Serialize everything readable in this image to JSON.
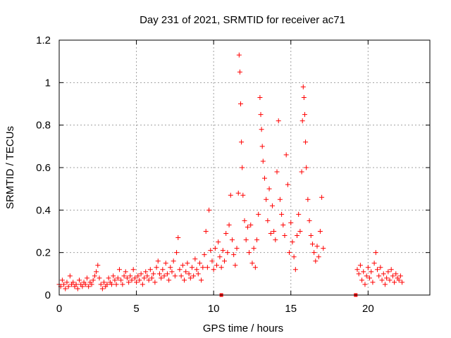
{
  "chart_data": {
    "type": "scatter",
    "title": "Day 231 of 2021, SRMTID for receiver ac71",
    "xlabel": "GPS time / hours",
    "ylabel": "SRMTID / TECUs",
    "xlim": [
      0,
      24
    ],
    "ylim": [
      0,
      1.2
    ],
    "xticks": [
      0,
      5,
      10,
      15,
      20
    ],
    "xtick_labels": [
      "0",
      "5",
      "10",
      "15",
      "20"
    ],
    "yticks": [
      0,
      0.2,
      0.4,
      0.6,
      0.8,
      1.0,
      1.2
    ],
    "ytick_labels": [
      "0",
      "0.2",
      "0.4",
      "0.6",
      "0.8",
      "1",
      "1.2"
    ],
    "grid": true,
    "marker": "plus",
    "color": "#ff0000",
    "series": [
      {
        "name": "SRMTID",
        "points": [
          [
            0.0,
            0.05
          ],
          [
            0.1,
            0.04
          ],
          [
            0.2,
            0.07
          ],
          [
            0.3,
            0.05
          ],
          [
            0.4,
            0.03
          ],
          [
            0.5,
            0.06
          ],
          [
            0.6,
            0.04
          ],
          [
            0.7,
            0.09
          ],
          [
            0.8,
            0.05
          ],
          [
            0.9,
            0.06
          ],
          [
            1.0,
            0.04
          ],
          [
            1.1,
            0.05
          ],
          [
            1.2,
            0.03
          ],
          [
            1.3,
            0.07
          ],
          [
            1.4,
            0.05
          ],
          [
            1.5,
            0.04
          ],
          [
            1.6,
            0.06
          ],
          [
            1.7,
            0.05
          ],
          [
            1.8,
            0.08
          ],
          [
            1.9,
            0.04
          ],
          [
            2.0,
            0.06
          ],
          [
            2.1,
            0.05
          ],
          [
            2.2,
            0.07
          ],
          [
            2.3,
            0.09
          ],
          [
            2.4,
            0.11
          ],
          [
            2.5,
            0.14
          ],
          [
            2.6,
            0.08
          ],
          [
            2.7,
            0.05
          ],
          [
            2.8,
            0.03
          ],
          [
            2.9,
            0.06
          ],
          [
            3.0,
            0.04
          ],
          [
            3.1,
            0.05
          ],
          [
            3.2,
            0.08
          ],
          [
            3.3,
            0.06
          ],
          [
            3.4,
            0.05
          ],
          [
            3.5,
            0.09
          ],
          [
            3.6,
            0.07
          ],
          [
            3.7,
            0.05
          ],
          [
            3.8,
            0.08
          ],
          [
            3.9,
            0.12
          ],
          [
            4.0,
            0.07
          ],
          [
            4.1,
            0.05
          ],
          [
            4.2,
            0.09
          ],
          [
            4.3,
            0.11
          ],
          [
            4.4,
            0.08
          ],
          [
            4.5,
            0.06
          ],
          [
            4.6,
            0.09
          ],
          [
            4.7,
            0.07
          ],
          [
            4.8,
            0.12
          ],
          [
            4.9,
            0.08
          ],
          [
            5.0,
            0.06
          ],
          [
            5.1,
            0.09
          ],
          [
            5.2,
            0.07
          ],
          [
            5.3,
            0.1
          ],
          [
            5.4,
            0.05
          ],
          [
            5.5,
            0.08
          ],
          [
            5.6,
            0.11
          ],
          [
            5.7,
            0.09
          ],
          [
            5.8,
            0.07
          ],
          [
            5.9,
            0.12
          ],
          [
            6.0,
            0.08
          ],
          [
            6.1,
            0.1
          ],
          [
            6.2,
            0.06
          ],
          [
            6.3,
            0.13
          ],
          [
            6.4,
            0.16
          ],
          [
            6.5,
            0.1
          ],
          [
            6.6,
            0.08
          ],
          [
            6.7,
            0.12
          ],
          [
            6.8,
            0.09
          ],
          [
            6.9,
            0.15
          ],
          [
            7.0,
            0.1
          ],
          [
            7.1,
            0.07
          ],
          [
            7.2,
            0.13
          ],
          [
            7.3,
            0.11
          ],
          [
            7.4,
            0.16
          ],
          [
            7.5,
            0.09
          ],
          [
            7.6,
            0.2
          ],
          [
            7.7,
            0.27
          ],
          [
            7.8,
            0.12
          ],
          [
            7.9,
            0.09
          ],
          [
            8.0,
            0.14
          ],
          [
            8.1,
            0.07
          ],
          [
            8.2,
            0.11
          ],
          [
            8.3,
            0.15
          ],
          [
            8.4,
            0.1
          ],
          [
            8.5,
            0.08
          ],
          [
            8.6,
            0.13
          ],
          [
            8.7,
            0.09
          ],
          [
            8.8,
            0.17
          ],
          [
            8.9,
            0.12
          ],
          [
            9.0,
            0.1
          ],
          [
            9.1,
            0.15
          ],
          [
            9.2,
            0.07
          ],
          [
            9.3,
            0.13
          ],
          [
            9.4,
            0.19
          ],
          [
            9.5,
            0.3
          ],
          [
            9.6,
            0.13
          ],
          [
            9.7,
            0.4
          ],
          [
            9.8,
            0.21
          ],
          [
            9.9,
            0.16
          ],
          [
            10.0,
            0.12
          ],
          [
            10.1,
            0.22
          ],
          [
            10.2,
            0.14
          ],
          [
            10.3,
            0.25
          ],
          [
            10.4,
            0.18
          ],
          [
            10.5,
            0.13
          ],
          [
            10.6,
            0.21
          ],
          [
            10.7,
            0.16
          ],
          [
            10.8,
            0.29
          ],
          [
            10.9,
            0.2
          ],
          [
            11.0,
            0.33
          ],
          [
            11.1,
            0.47
          ],
          [
            11.2,
            0.26
          ],
          [
            11.3,
            0.19
          ],
          [
            11.4,
            0.14
          ],
          [
            11.5,
            0.22
          ],
          [
            11.6,
            0.48
          ],
          [
            11.65,
            1.13
          ],
          [
            11.7,
            1.05
          ],
          [
            11.75,
            0.9
          ],
          [
            11.8,
            0.72
          ],
          [
            11.85,
            0.6
          ],
          [
            11.9,
            0.47
          ],
          [
            12.0,
            0.35
          ],
          [
            12.1,
            0.26
          ],
          [
            12.2,
            0.32
          ],
          [
            12.3,
            0.2
          ],
          [
            12.4,
            0.33
          ],
          [
            12.5,
            0.15
          ],
          [
            12.6,
            0.22
          ],
          [
            12.7,
            0.13
          ],
          [
            12.8,
            0.26
          ],
          [
            12.9,
            0.38
          ],
          [
            13.0,
            0.93
          ],
          [
            13.05,
            0.85
          ],
          [
            13.1,
            0.78
          ],
          [
            13.15,
            0.7
          ],
          [
            13.2,
            0.63
          ],
          [
            13.3,
            0.55
          ],
          [
            13.4,
            0.45
          ],
          [
            13.5,
            0.35
          ],
          [
            13.6,
            0.5
          ],
          [
            13.7,
            0.29
          ],
          [
            13.8,
            0.42
          ],
          [
            13.9,
            0.3
          ],
          [
            14.0,
            0.26
          ],
          [
            14.1,
            0.58
          ],
          [
            14.2,
            0.82
          ],
          [
            14.3,
            0.45
          ],
          [
            14.4,
            0.38
          ],
          [
            14.5,
            0.33
          ],
          [
            14.6,
            0.28
          ],
          [
            14.7,
            0.66
          ],
          [
            14.8,
            0.52
          ],
          [
            14.9,
            0.2
          ],
          [
            15.0,
            0.34
          ],
          [
            15.1,
            0.25
          ],
          [
            15.2,
            0.18
          ],
          [
            15.3,
            0.12
          ],
          [
            15.4,
            0.28
          ],
          [
            15.5,
            0.38
          ],
          [
            15.6,
            0.3
          ],
          [
            15.7,
            0.58
          ],
          [
            15.75,
            0.82
          ],
          [
            15.8,
            0.98
          ],
          [
            15.85,
            0.93
          ],
          [
            15.9,
            0.85
          ],
          [
            15.95,
            0.72
          ],
          [
            16.0,
            0.6
          ],
          [
            16.1,
            0.45
          ],
          [
            16.2,
            0.35
          ],
          [
            16.3,
            0.28
          ],
          [
            16.4,
            0.24
          ],
          [
            16.5,
            0.2
          ],
          [
            16.6,
            0.16
          ],
          [
            16.7,
            0.23
          ],
          [
            16.8,
            0.18
          ],
          [
            16.9,
            0.3
          ],
          [
            17.0,
            0.46
          ],
          [
            17.1,
            0.22
          ],
          [
            19.3,
            0.12
          ],
          [
            19.4,
            0.1
          ],
          [
            19.5,
            0.14
          ],
          [
            19.6,
            0.07
          ],
          [
            19.7,
            0.11
          ],
          [
            19.8,
            0.05
          ],
          [
            19.9,
            0.09
          ],
          [
            20.0,
            0.13
          ],
          [
            20.1,
            0.08
          ],
          [
            20.2,
            0.11
          ],
          [
            20.3,
            0.06
          ],
          [
            20.4,
            0.15
          ],
          [
            20.5,
            0.2
          ],
          [
            20.6,
            0.12
          ],
          [
            20.7,
            0.09
          ],
          [
            20.8,
            0.13
          ],
          [
            20.9,
            0.07
          ],
          [
            21.0,
            0.1
          ],
          [
            21.1,
            0.05
          ],
          [
            21.2,
            0.08
          ],
          [
            21.3,
            0.11
          ],
          [
            21.4,
            0.07
          ],
          [
            21.5,
            0.12
          ],
          [
            21.6,
            0.09
          ],
          [
            21.7,
            0.06
          ],
          [
            21.8,
            0.1
          ],
          [
            21.9,
            0.08
          ],
          [
            22.0,
            0.07
          ],
          [
            22.1,
            0.09
          ],
          [
            22.2,
            0.06
          ]
        ]
      }
    ],
    "axis_markers": [
      10.5,
      19.2
    ]
  }
}
